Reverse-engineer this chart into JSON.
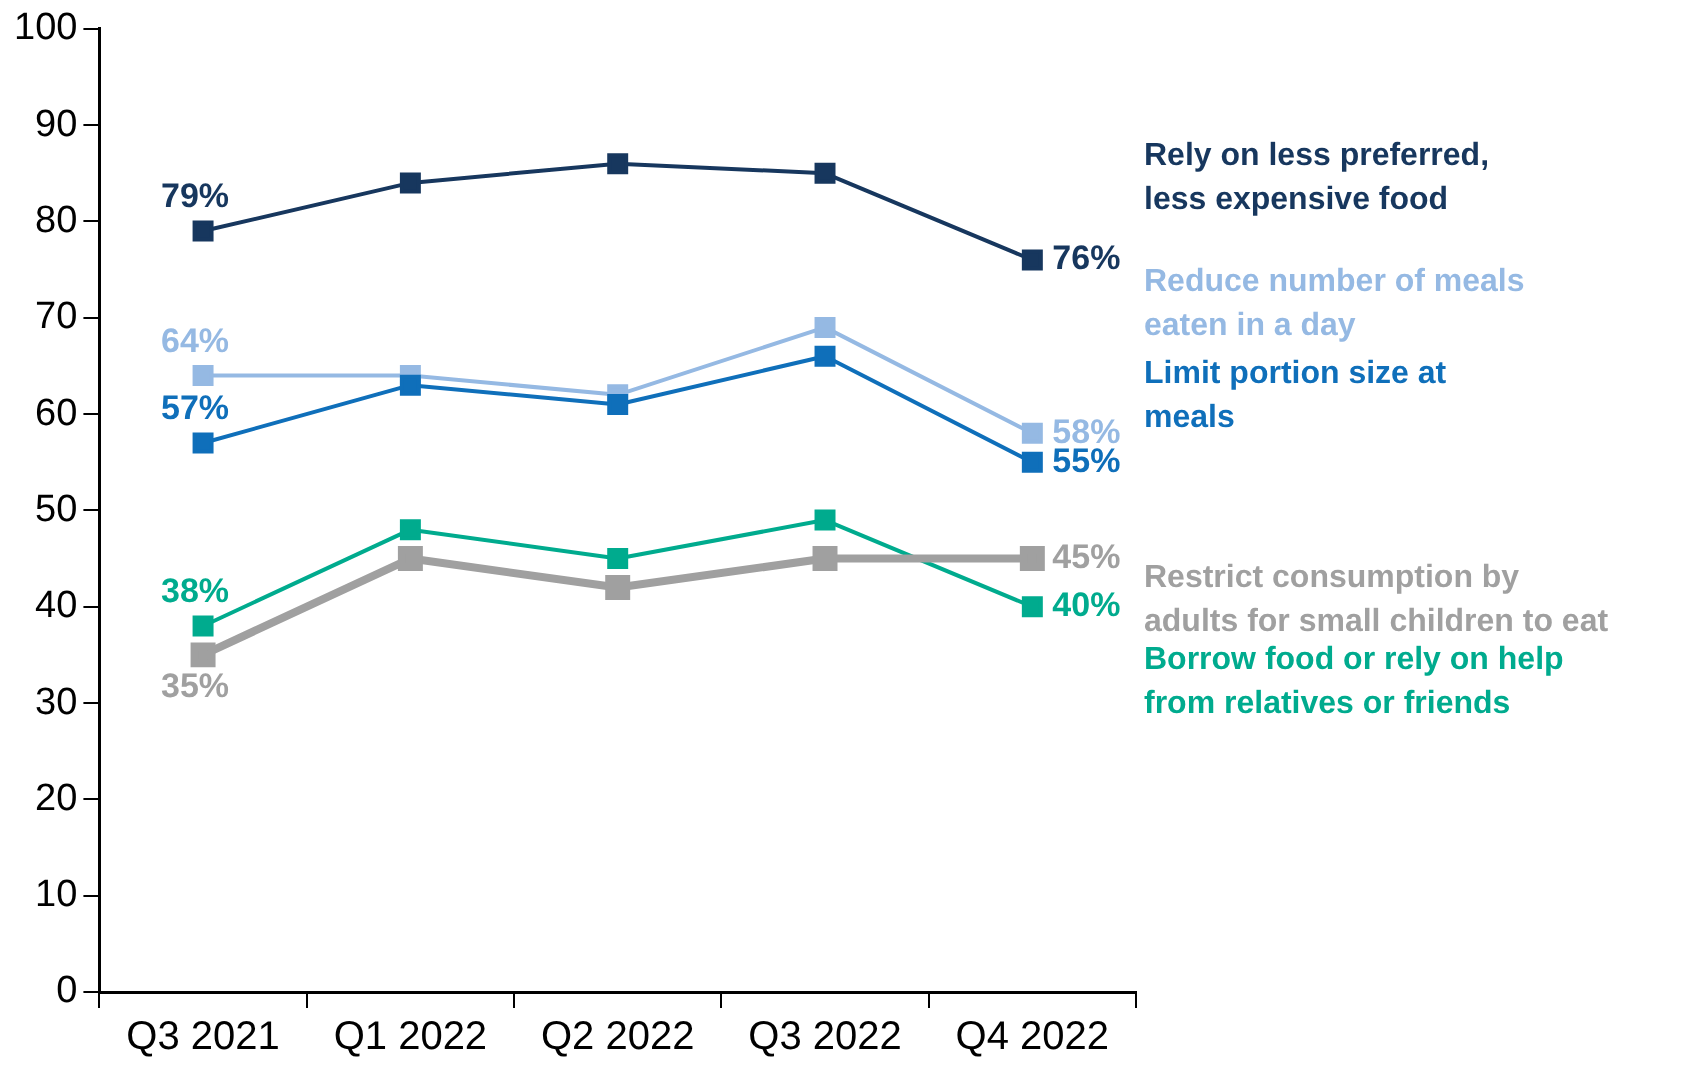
{
  "chart_data": {
    "type": "line",
    "categories": [
      "Q3 2021",
      "Q1 2022",
      "Q2 2022",
      "Q3 2022",
      "Q4 2022"
    ],
    "ylim": [
      0,
      100
    ],
    "yticks": [
      0,
      10,
      20,
      30,
      40,
      50,
      60,
      70,
      80,
      90,
      100
    ],
    "grid": false,
    "legend": false,
    "marker": "square",
    "line_style": "solid",
    "series": [
      {
        "name": "Rely on less preferred, less expensive food",
        "color": "#17375e",
        "values": [
          79,
          84,
          86,
          85,
          76
        ],
        "value_labels": [
          "79%",
          null,
          null,
          null,
          "76%"
        ]
      },
      {
        "name": "Reduce number of meals eaten in a day",
        "color": "#95b9e3",
        "values": [
          64,
          64,
          62,
          69,
          58
        ],
        "value_labels": [
          "64%",
          null,
          null,
          null,
          "58%"
        ]
      },
      {
        "name": "Limit portion size at meals",
        "color": "#0f6fba",
        "values": [
          57,
          63,
          61,
          66,
          55
        ],
        "value_labels": [
          "57%",
          null,
          null,
          null,
          "55%"
        ]
      },
      {
        "name": "Restrict consumption by adults for small children to eat",
        "color": "#a0a0a0",
        "values": [
          35,
          45,
          42,
          45,
          45
        ],
        "value_labels": [
          "35%",
          null,
          null,
          null,
          "45%"
        ]
      },
      {
        "name": "Borrow food or rely on help from relatives or friends",
        "color": "#00ab8e",
        "values": [
          38,
          48,
          45,
          49,
          40
        ],
        "value_labels": [
          "38%",
          null,
          null,
          null,
          "40%"
        ]
      }
    ]
  }
}
